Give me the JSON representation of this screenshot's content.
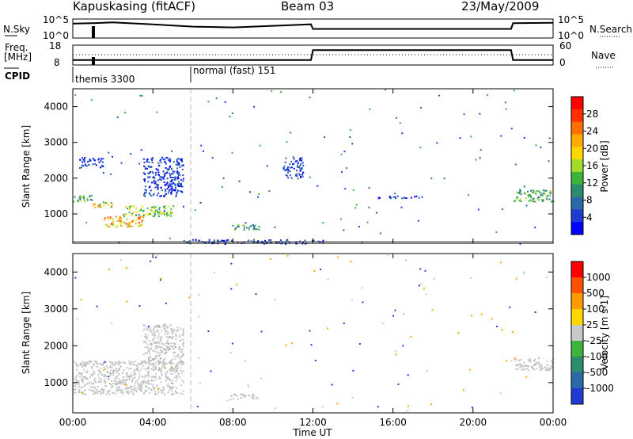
{
  "header": {
    "station": "Kapuskasing (fitACF)",
    "beam": "Beam 03",
    "date": "23/May/2009"
  },
  "noise_panel": {
    "left_label": "N.Sky",
    "left_ticks": [
      "10^5",
      "10^0"
    ],
    "right_label": "N.Search",
    "right_ticks": [
      "10^5",
      "10^0"
    ]
  },
  "freq_panel": {
    "left_label_1": "Freq.",
    "left_label_2": "[MHz]",
    "left_ticks": [
      "18",
      "8"
    ],
    "right_label": "Nave",
    "right_ticks": [
      "60",
      "0"
    ]
  },
  "cpid": {
    "label": "CPID",
    "modes": [
      "themis 3300",
      "normal (fast) 151"
    ]
  },
  "x_axis": {
    "title": "Time UT",
    "ticks": [
      "00:00",
      "04:00",
      "08:00",
      "12:00",
      "16:00",
      "20:00",
      "00:00"
    ]
  },
  "power_colorbar": {
    "title": "Power [dB]",
    "tick_labels": [
      "4",
      "8",
      "12",
      "16",
      "20",
      "24",
      "28"
    ],
    "colors": [
      "#0000ff",
      "#1e3cd2",
      "#2a6aa8",
      "#2e8c6e",
      "#3cb43c",
      "#a0dc28",
      "#ffd700",
      "#ffaa00",
      "#ff7000",
      "#ff3000",
      "#ff0000"
    ]
  },
  "velocity_colorbar": {
    "title": "Velocity [m s-1]",
    "tick_labels": [
      "1000",
      "500",
      "100",
      "25",
      "-25",
      "-100",
      "-500",
      "-1000"
    ],
    "colors": [
      "#1e3cd2",
      "#2a6aa8",
      "#2e8c6e",
      "#3cb43c",
      "#c8c8c8",
      "#ffd700",
      "#ff9a00",
      "#ff5000",
      "#ff0000"
    ]
  },
  "chart_data": [
    {
      "type": "line",
      "name": "noise",
      "title": "",
      "xlabel": "",
      "x_range": [
        0,
        24
      ],
      "note_scale": "log",
      "series": [
        {
          "name": "N.Sky",
          "x": [
            0,
            1,
            2,
            4,
            6,
            8,
            10,
            11.9,
            12,
            16,
            20,
            21.9,
            22,
            24
          ],
          "y_log10": [
            3.8,
            3.9,
            4.1,
            3.6,
            3.0,
            2.8,
            3.2,
            3.6,
            2.4,
            2.4,
            2.4,
            2.4,
            3.9,
            4.0
          ]
        }
      ]
    },
    {
      "type": "line",
      "name": "frequency",
      "xlabel": "",
      "y_range_left": [
        8,
        18
      ],
      "y_range_right": [
        0,
        60
      ],
      "series": [
        {
          "name": "Freq.",
          "x": [
            0,
            0.1,
            11.9,
            12.0,
            21.9,
            22.0,
            24
          ],
          "y": [
            10.5,
            10.5,
            10.5,
            15.5,
            15.5,
            10.5,
            10.5
          ]
        },
        {
          "name": "Nave",
          "x": [
            0,
            24
          ],
          "y": [
            20,
            20
          ]
        }
      ]
    },
    {
      "type": "heatmap",
      "name": "power",
      "ylabel": "Slant Range [km]",
      "xlabel": "",
      "y_ticks": [
        1000,
        2000,
        3000,
        4000
      ],
      "ylim": [
        180,
        4500
      ],
      "xlim_hours": [
        0,
        24
      ],
      "clim_db": [
        0,
        30
      ],
      "regions": [
        {
          "t": [
            0.0,
            1.0
          ],
          "range": [
            1350,
            1550
          ],
          "level": "green"
        },
        {
          "t": [
            1.0,
            2.0
          ],
          "range": [
            1200,
            1350
          ],
          "level": "orange"
        },
        {
          "t": [
            1.5,
            3.5
          ],
          "range": [
            650,
            950
          ],
          "level": "orange-red"
        },
        {
          "t": [
            2.5,
            5.0
          ],
          "range": [
            950,
            1250
          ],
          "level": "green-yellow"
        },
        {
          "t": [
            3.5,
            5.5
          ],
          "range": [
            1500,
            2600
          ],
          "level": "blue"
        },
        {
          "t": [
            0.3,
            1.5
          ],
          "range": [
            2300,
            2600
          ],
          "level": "blue"
        },
        {
          "t": [
            7.8,
            9.3
          ],
          "range": [
            560,
            720
          ],
          "level": "green"
        },
        {
          "t": [
            10.5,
            11.5
          ],
          "range": [
            2000,
            2600
          ],
          "level": "blue"
        },
        {
          "t": [
            15.0,
            17.5
          ],
          "range": [
            1450,
            1520
          ],
          "level": "blue"
        },
        {
          "t": [
            22.0,
            24.0
          ],
          "range": [
            1350,
            1700
          ],
          "level": "green"
        },
        {
          "t": [
            5.5,
            12.5
          ],
          "range": [
            180,
            300
          ],
          "level": "blue"
        }
      ]
    },
    {
      "type": "heatmap",
      "name": "velocity",
      "ylabel": "Slant Range [km]",
      "xlabel": "Time UT",
      "y_ticks": [
        1000,
        2000,
        3000,
        4000
      ],
      "ylim": [
        180,
        4500
      ],
      "xlim_hours": [
        0,
        24
      ],
      "clim_ms": [
        -1000,
        1000
      ],
      "regions": [
        {
          "t": [
            0.0,
            5.5
          ],
          "range": [
            700,
            1600
          ],
          "level": "ground-scatter"
        },
        {
          "t": [
            3.5,
            5.5
          ],
          "range": [
            1500,
            2600
          ],
          "level": "ground-scatter"
        },
        {
          "t": [
            7.8,
            9.3
          ],
          "range": [
            560,
            720
          ],
          "level": "ground-scatter"
        },
        {
          "t": [
            22.0,
            24.0
          ],
          "range": [
            1350,
            1700
          ],
          "level": "ground-scatter"
        }
      ]
    }
  ]
}
